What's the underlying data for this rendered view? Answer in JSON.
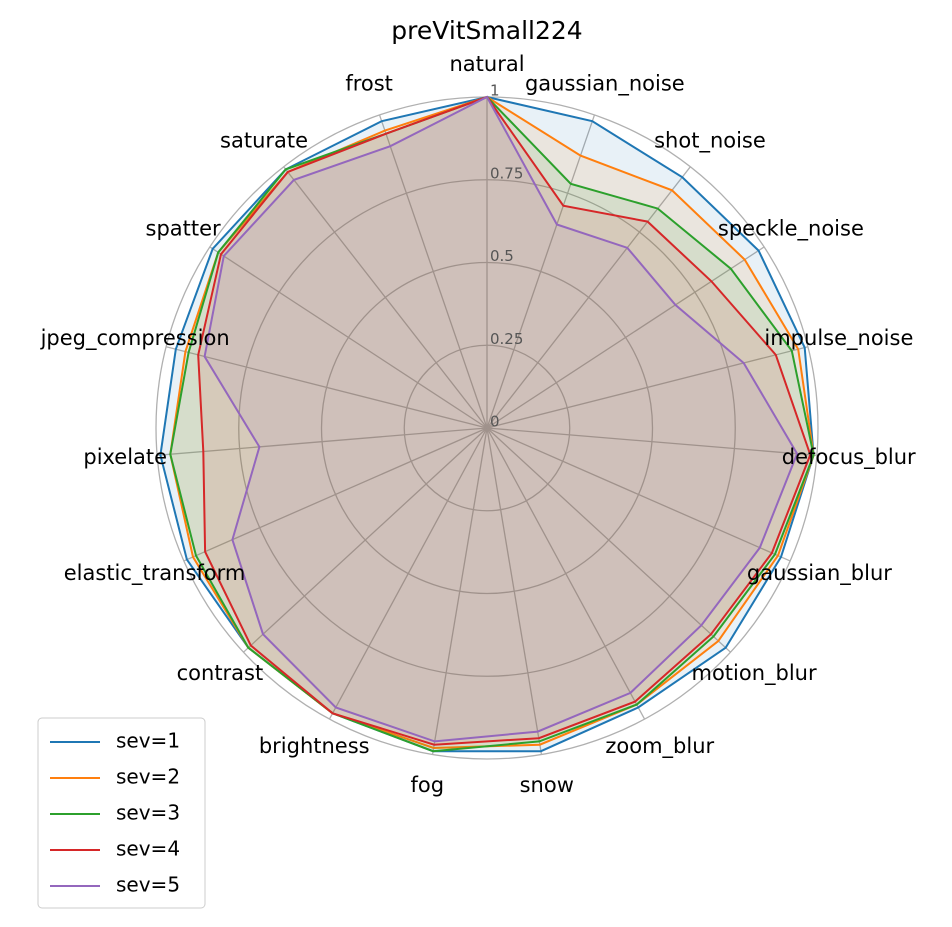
{
  "chart_data": {
    "type": "radar",
    "title": "preVitSmall224",
    "categories": [
      "natural",
      "gaussian_noise",
      "shot_noise",
      "speckle_noise",
      "impulse_noise",
      "defocus_blur",
      "gaussian_blur",
      "motion_blur",
      "zoom_blur",
      "snow",
      "fog",
      "brightness",
      "contrast",
      "elastic_transform",
      "pixelate",
      "jpeg_compression",
      "spatter",
      "saturate",
      "frost"
    ],
    "series": [
      {
        "name": "sev=1",
        "color": "#1f77b4",
        "values": [
          1,
          0.98,
          0.96,
          0.98,
          0.99,
          0.99,
          0.97,
          0.98,
          0.96,
          0.99,
          0.99,
          0.98,
          0.98,
          0.99,
          0.99,
          0.97,
          0.99,
          0.99,
          0.98
        ]
      },
      {
        "name": "sev=2",
        "color": "#ff7f0e",
        "values": [
          1,
          0.87,
          0.91,
          0.93,
          0.97,
          0.99,
          0.96,
          0.95,
          0.95,
          0.97,
          0.98,
          0.98,
          0.98,
          0.97,
          0.96,
          0.94,
          0.97,
          0.98,
          0.95
        ]
      },
      {
        "name": "sev=3",
        "color": "#2ca02c",
        "values": [
          1,
          0.78,
          0.84,
          0.88,
          0.95,
          0.99,
          0.95,
          0.93,
          0.95,
          0.96,
          0.99,
          0.98,
          0.98,
          0.96,
          0.96,
          0.93,
          0.97,
          0.99,
          0.94
        ]
      },
      {
        "name": "sev=4",
        "color": "#d62728",
        "values": [
          1,
          0.71,
          0.79,
          0.81,
          0.9,
          0.98,
          0.94,
          0.92,
          0.94,
          0.95,
          0.97,
          0.98,
          0.97,
          0.93,
          0.86,
          0.9,
          0.96,
          0.98,
          0.94
        ]
      },
      {
        "name": "sev=5",
        "color": "#9467bd",
        "values": [
          1,
          0.65,
          0.69,
          0.68,
          0.8,
          0.94,
          0.9,
          0.88,
          0.91,
          0.93,
          0.96,
          0.96,
          0.92,
          0.84,
          0.69,
          0.88,
          0.95,
          0.95,
          0.9
        ]
      }
    ],
    "ylim": [
      0,
      1
    ],
    "yticks": [
      0,
      0.25,
      0.5,
      0.75,
      1
    ],
    "grid": true,
    "legend": "lower left"
  }
}
